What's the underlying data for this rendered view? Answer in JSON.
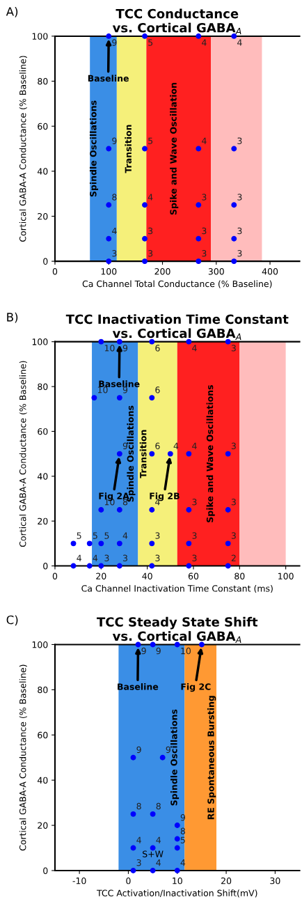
{
  "chart_data": [
    {
      "type": "scatter",
      "title": "TCC Conductance\nvs. Cortical GABA$_{A}$",
      "xlabel": "Ca Channel Total Conductance (% Baseline)",
      "ylabel": "Cortical GABA-A Conductance (% Baseline)",
      "x": [
        100,
        167,
        267,
        333,
        100,
        167,
        267,
        333,
        100,
        167,
        267,
        333,
        100,
        167,
        267,
        333,
        100,
        167,
        267,
        333
      ],
      "values": [
        100,
        100,
        100,
        100,
        50,
        50,
        50,
        50,
        25,
        25,
        25,
        25,
        10,
        10,
        10,
        10,
        0,
        0,
        0,
        0
      ],
      "color": "#0000ff",
      "xlim": [
        0,
        455
      ],
      "xticks": [
        0,
        100,
        200,
        300,
        400
      ],
      "ylim": [
        0,
        100
      ],
      "yticks": [
        0,
        20,
        40,
        60,
        80,
        100
      ],
      "bands": [
        {
          "axis": "x",
          "from": 65,
          "to": 115,
          "label": "Spindle Oscillations",
          "color": "#3a8ee6"
        },
        {
          "axis": "x",
          "from": 115,
          "to": 170,
          "label": "Transition",
          "color": "#f5f07a"
        },
        {
          "axis": "x",
          "from": 170,
          "to": 290,
          "label": "Spike and Wave Oscillation",
          "color": "#ff2020"
        },
        {
          "axis": "x",
          "from": 290,
          "to": 385,
          "color": "#ffbcbc"
        }
      ],
      "annotations": [
        "A)",
        {
          "text": "Baseline",
          "x": 100,
          "y": 100
        },
        {
          "text": "9",
          "x": 100,
          "y": 100
        },
        {
          "text": "5",
          "x": 167,
          "y": 100
        },
        {
          "text": "4",
          "x": 267,
          "y": 100
        },
        {
          "text": "4",
          "x": 333,
          "y": 100
        },
        {
          "text": "9",
          "x": 100,
          "y": 50
        },
        {
          "text": "5",
          "x": 167,
          "y": 50
        },
        {
          "text": "4",
          "x": 267,
          "y": 50
        },
        {
          "text": "3",
          "x": 333,
          "y": 50
        },
        {
          "text": "8",
          "x": 100,
          "y": 25
        },
        {
          "text": "4",
          "x": 167,
          "y": 25
        },
        {
          "text": "3",
          "x": 267,
          "y": 25
        },
        {
          "text": "3",
          "x": 333,
          "y": 25
        },
        {
          "text": "4",
          "x": 100,
          "y": 10
        },
        {
          "text": "3",
          "x": 167,
          "y": 10
        },
        {
          "text": "3",
          "x": 267,
          "y": 10
        },
        {
          "text": "3",
          "x": 333,
          "y": 10
        },
        {
          "text": "3",
          "x": 100,
          "y": 0
        },
        {
          "text": "3",
          "x": 167,
          "y": 0
        },
        {
          "text": "3",
          "x": 267,
          "y": 0
        },
        {
          "text": "3",
          "x": 333,
          "y": 0
        }
      ]
    },
    {
      "type": "scatter",
      "title": "TCC Inactivation Time Constant\nvs. Cortical GABA$_{A}$",
      "xlabel": "Ca Channel Inactivation Time Constant (ms)",
      "ylabel": "Cortical GABA-A Conductance (% Baseline)",
      "x": [
        20,
        28,
        42,
        58,
        75,
        17,
        28,
        42,
        28,
        42,
        50,
        58,
        75,
        20,
        28,
        42,
        58,
        75,
        8,
        15,
        20,
        28,
        42,
        58,
        75,
        8,
        15,
        20,
        28,
        42,
        58,
        75
      ],
      "values": [
        100,
        100,
        100,
        100,
        100,
        75,
        75,
        75,
        50,
        50,
        50,
        50,
        50,
        25,
        25,
        25,
        25,
        25,
        10,
        10,
        10,
        10,
        10,
        10,
        10,
        0,
        0,
        0,
        0,
        0,
        0,
        0
      ],
      "color": "#0000ff",
      "xlim": [
        0,
        106
      ],
      "xticks": [
        0,
        20,
        40,
        60,
        80,
        100
      ],
      "ylim": [
        0,
        100
      ],
      "yticks": [
        0,
        20,
        40,
        60,
        80,
        100
      ],
      "bands": [
        {
          "axis": "x",
          "from": 16,
          "to": 36,
          "label": "Spindle Oscillations",
          "color": "#3a8ee6"
        },
        {
          "axis": "x",
          "from": 36,
          "to": 53,
          "label": "Transition",
          "color": "#f5f07a"
        },
        {
          "axis": "x",
          "from": 53,
          "to": 80,
          "label": "Spike and Wave Oscillations",
          "color": "#ff2020"
        },
        {
          "axis": "x",
          "from": 80,
          "to": 100,
          "color": "#ffbcbc"
        }
      ],
      "annotations": [
        "B)",
        {
          "text": "Baseline",
          "x": 28,
          "y": 100
        },
        {
          "text": "Fig 2A",
          "x": 28,
          "y": 50
        },
        {
          "text": "Fig 2B",
          "x": 50,
          "y": 50
        },
        {
          "text": "10",
          "x": 20,
          "y": 100
        },
        {
          "text": "9",
          "x": 28,
          "y": 100
        },
        {
          "text": "6",
          "x": 42,
          "y": 100
        },
        {
          "text": "4",
          "x": 58,
          "y": 100
        },
        {
          "text": "3",
          "x": 75,
          "y": 100
        },
        {
          "text": "10",
          "x": 17,
          "y": 75
        },
        {
          "text": "9",
          "x": 28,
          "y": 75
        },
        {
          "text": "6",
          "x": 42,
          "y": 75
        },
        {
          "text": "9",
          "x": 28,
          "y": 50
        },
        {
          "text": "6",
          "x": 42,
          "y": 50
        },
        {
          "text": "4",
          "x": 50,
          "y": 50
        },
        {
          "text": "4",
          "x": 58,
          "y": 50
        },
        {
          "text": "3",
          "x": 75,
          "y": 50
        },
        {
          "text": "10",
          "x": 20,
          "y": 25
        },
        {
          "text": "8",
          "x": 28,
          "y": 25
        },
        {
          "text": "4",
          "x": 42,
          "y": 25
        },
        {
          "text": "3",
          "x": 58,
          "y": 25
        },
        {
          "text": "3",
          "x": 75,
          "y": 25
        },
        {
          "text": "5",
          "x": 8,
          "y": 10
        },
        {
          "text": "5",
          "x": 15,
          "y": 10
        },
        {
          "text": "5",
          "x": 20,
          "y": 10
        },
        {
          "text": "4",
          "x": 28,
          "y": 10
        },
        {
          "text": "3",
          "x": 42,
          "y": 10
        },
        {
          "text": "3",
          "x": 58,
          "y": 10
        },
        {
          "text": "3",
          "x": 75,
          "y": 10
        },
        {
          "text": "4",
          "x": 8,
          "y": 0
        },
        {
          "text": "4",
          "x": 15,
          "y": 0
        },
        {
          "text": "3",
          "x": 20,
          "y": 0
        },
        {
          "text": "3",
          "x": 28,
          "y": 0
        },
        {
          "text": "3",
          "x": 42,
          "y": 0
        },
        {
          "text": "3",
          "x": 58,
          "y": 0
        },
        {
          "text": "2",
          "x": 75,
          "y": 0
        }
      ]
    },
    {
      "type": "scatter",
      "title": "TCC Steady State Shift\nvs. Cortical GABA$_{A}$",
      "xlabel": "TCC Activation/Inactivation Shift(mV)",
      "ylabel": "Cortical GABA-A Conductance (% Baseline)",
      "x": [
        2,
        5,
        10,
        15,
        1,
        7,
        1,
        5,
        10,
        10,
        1,
        5,
        10,
        1,
        5,
        10
      ],
      "values": [
        100,
        100,
        100,
        100,
        50,
        50,
        25,
        25,
        20,
        14,
        10,
        10,
        10,
        0,
        0,
        0
      ],
      "color": "#0000ff",
      "xlim": [
        -15,
        35
      ],
      "xticks": [
        -10,
        0,
        10,
        20,
        30
      ],
      "ylim": [
        0,
        100
      ],
      "yticks": [
        0,
        20,
        40,
        60,
        80,
        100
      ],
      "bands": [
        {
          "axis": "x",
          "from": -2,
          "to": 11.5,
          "label": "Spindle Oscillations",
          "color": "#3a8ee6"
        },
        {
          "axis": "x",
          "from": 11.5,
          "to": 18,
          "label": "RE Spontaneous Bursting",
          "color": "#ff9933"
        }
      ],
      "annotations": [
        "C)",
        "S+W",
        {
          "text": "Baseline",
          "x": 2,
          "y": 100
        },
        {
          "text": "Fig 2C",
          "x": 15,
          "y": 100
        },
        {
          "text": "9",
          "x": 2,
          "y": 100
        },
        {
          "text": "9",
          "x": 5,
          "y": 100
        },
        {
          "text": "10",
          "x": 10,
          "y": 100
        },
        {
          "text": "9",
          "x": 1,
          "y": 50
        },
        {
          "text": "9",
          "x": 7,
          "y": 50
        },
        {
          "text": "8",
          "x": 1,
          "y": 25
        },
        {
          "text": "8",
          "x": 5,
          "y": 25
        },
        {
          "text": "9",
          "x": 10,
          "y": 20
        },
        {
          "text": "8",
          "x": 10,
          "y": 14
        },
        {
          "text": "4",
          "x": 1,
          "y": 10
        },
        {
          "text": "4",
          "x": 5,
          "y": 10
        },
        {
          "text": "5",
          "x": 10,
          "y": 10
        },
        {
          "text": "3",
          "x": 1,
          "y": 0
        },
        {
          "text": "4",
          "x": 5,
          "y": 0
        },
        {
          "text": "4",
          "x": 10,
          "y": 0
        }
      ]
    }
  ]
}
